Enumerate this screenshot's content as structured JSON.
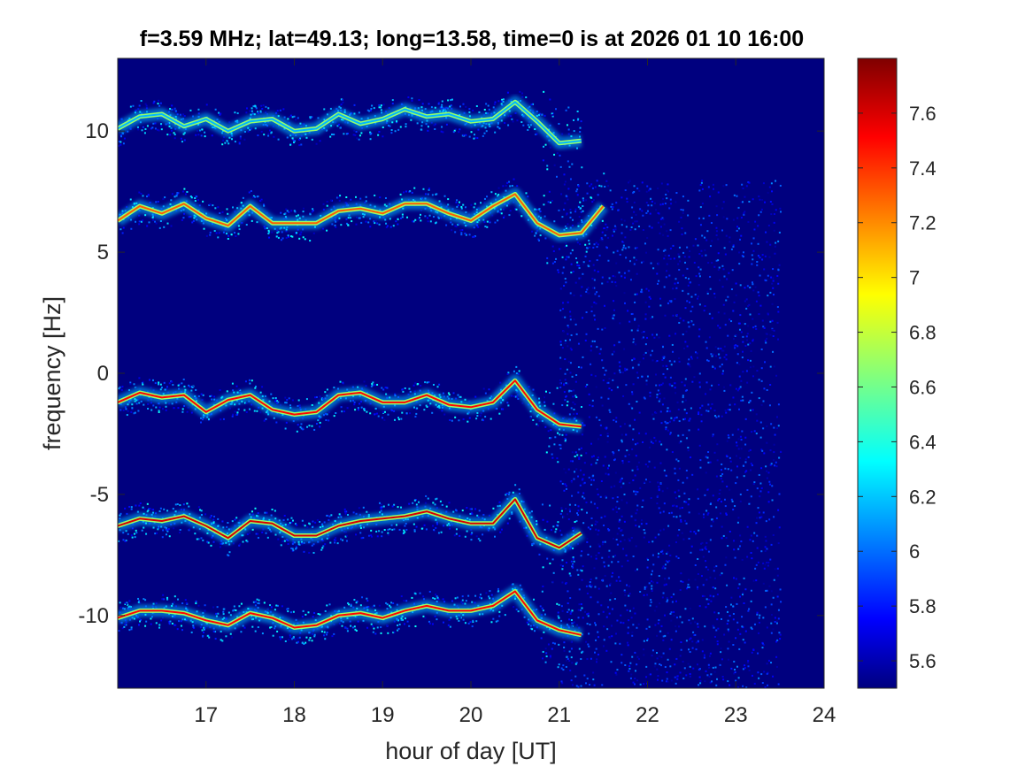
{
  "chart_data": {
    "type": "heatmap",
    "title": "f=3.59 MHz;  lat=49.13; long=13.58, time=0 is at 2026 01 10 16:00",
    "xlabel": "hour of day [UT]",
    "ylabel": "frequency [Hz]",
    "xlim": [
      16,
      24
    ],
    "ylim": [
      -13,
      13
    ],
    "x_ticks": [
      17,
      18,
      19,
      20,
      21,
      22,
      23,
      24
    ],
    "y_ticks": [
      10,
      5,
      0,
      -5,
      -10
    ],
    "grid": false,
    "colormap": "jet",
    "background_color": "#00007f",
    "colorbar": {
      "range": [
        5.5,
        7.8
      ],
      "ticks": [
        5.6,
        5.8,
        6,
        6.2,
        6.4,
        6.6,
        6.8,
        7,
        7.2,
        7.4,
        7.6
      ],
      "tick_labels": [
        "5.6",
        "5.8",
        "6",
        "6.2",
        "6.4",
        "6.6",
        "6.8",
        "7",
        "7.2",
        "7.4",
        "7.6"
      ]
    },
    "series": [
      {
        "x": [
          16.0,
          16.25,
          16.5,
          16.75,
          17.0,
          17.25,
          17.5,
          17.75,
          18.0,
          18.25,
          18.5,
          18.75,
          19.0,
          19.25,
          19.5,
          19.75,
          20.0,
          20.25,
          20.5,
          20.75,
          21.0,
          21.25
        ],
        "y": [
          10.1,
          10.6,
          10.7,
          10.2,
          10.5,
          10.0,
          10.4,
          10.5,
          10.0,
          10.1,
          10.7,
          10.3,
          10.5,
          10.9,
          10.6,
          10.7,
          10.4,
          10.5,
          11.2,
          10.4,
          9.5,
          9.6
        ],
        "intensity": 6.2
      },
      {
        "x": [
          16.0,
          16.25,
          16.5,
          16.75,
          17.0,
          17.25,
          17.5,
          17.75,
          18.0,
          18.25,
          18.5,
          18.75,
          19.0,
          19.25,
          19.5,
          19.75,
          20.0,
          20.25,
          20.5,
          20.75,
          21.0,
          21.25,
          21.5
        ],
        "y": [
          6.3,
          6.9,
          6.6,
          7.0,
          6.4,
          6.1,
          6.9,
          6.2,
          6.2,
          6.2,
          6.7,
          6.8,
          6.6,
          7.0,
          7.0,
          6.6,
          6.3,
          6.9,
          7.4,
          6.2,
          5.7,
          5.8,
          6.9
        ],
        "intensity": 7.3
      },
      {
        "x": [
          16.0,
          16.25,
          16.5,
          16.75,
          17.0,
          17.25,
          17.5,
          17.75,
          18.0,
          18.25,
          18.5,
          18.75,
          19.0,
          19.25,
          19.5,
          19.75,
          20.0,
          20.25,
          20.5,
          20.75,
          21.0,
          21.25
        ],
        "y": [
          -1.2,
          -0.8,
          -1.0,
          -0.9,
          -1.6,
          -1.1,
          -0.9,
          -1.5,
          -1.7,
          -1.6,
          -0.9,
          -0.8,
          -1.2,
          -1.2,
          -0.9,
          -1.3,
          -1.4,
          -1.2,
          -0.3,
          -1.5,
          -2.1,
          -2.2
        ],
        "intensity": 7.5
      },
      {
        "x": [
          16.0,
          16.25,
          16.5,
          16.75,
          17.0,
          17.25,
          17.5,
          17.75,
          18.0,
          18.25,
          18.5,
          18.75,
          19.0,
          19.25,
          19.5,
          19.75,
          20.0,
          20.25,
          20.5,
          20.75,
          21.0,
          21.25
        ],
        "y": [
          -6.3,
          -6.0,
          -6.1,
          -5.9,
          -6.3,
          -6.8,
          -6.1,
          -6.2,
          -6.7,
          -6.7,
          -6.3,
          -6.1,
          -6.0,
          -5.9,
          -5.7,
          -6.0,
          -6.2,
          -6.2,
          -5.2,
          -6.8,
          -7.2,
          -6.6
        ],
        "intensity": 7.6
      },
      {
        "x": [
          16.0,
          16.25,
          16.5,
          16.75,
          17.0,
          17.25,
          17.5,
          17.75,
          18.0,
          18.25,
          18.5,
          18.75,
          19.0,
          19.25,
          19.5,
          19.75,
          20.0,
          20.25,
          20.5,
          20.75,
          21.0,
          21.25
        ],
        "y": [
          -10.1,
          -9.8,
          -9.8,
          -9.9,
          -10.2,
          -10.4,
          -9.9,
          -10.1,
          -10.5,
          -10.4,
          -10.0,
          -9.9,
          -10.1,
          -9.8,
          -9.6,
          -9.8,
          -9.8,
          -9.6,
          -9.0,
          -10.2,
          -10.6,
          -10.8
        ],
        "intensity": 7.5
      }
    ]
  }
}
